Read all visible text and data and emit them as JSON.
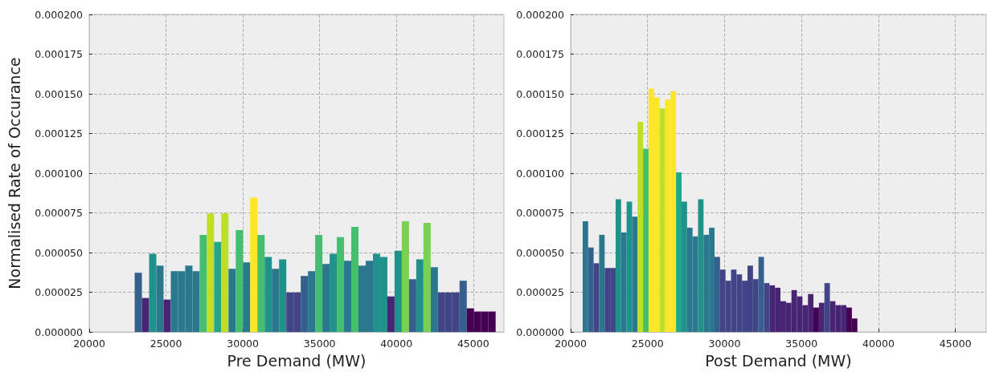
{
  "chart_data": [
    {
      "type": "histogram",
      "xlabel": "Pre Demand (MW)",
      "ylabel": "Normalised Rate of Occurance",
      "bins": [
        22960,
        23430,
        23900,
        24370,
        24840,
        25310,
        25780,
        26250,
        26720,
        27190,
        27660,
        28130,
        28600,
        29070,
        29540,
        30010,
        30480,
        30950,
        31420,
        31890,
        32360,
        32830,
        33300,
        33770,
        34240,
        34710,
        35180,
        35650,
        36120,
        36590,
        37060,
        37530,
        38000,
        38470,
        38940,
        39410,
        39880,
        40350,
        40820,
        41290,
        41760,
        42230,
        42700,
        43170,
        43640,
        44110,
        44580,
        45050,
        45520,
        45990,
        46460
      ],
      "values": [
        3.73e-05,
        2.14e-05,
        4.93e-05,
        4.18e-05,
        2.04e-05,
        3.83e-05,
        3.83e-05,
        4.18e-05,
        3.83e-05,
        6.12e-05,
        7.46e-05,
        5.67e-05,
        7.46e-05,
        3.98e-05,
        6.42e-05,
        4.38e-05,
        8.46e-05,
        6.12e-05,
        4.73e-05,
        3.98e-05,
        4.58e-05,
        2.49e-05,
        2.49e-05,
        3.53e-05,
        3.83e-05,
        6.12e-05,
        4.28e-05,
        4.93e-05,
        5.97e-05,
        4.48e-05,
        6.62e-05,
        4.18e-05,
        4.48e-05,
        4.93e-05,
        4.73e-05,
        2.24e-05,
        5.12e-05,
        6.97e-05,
        3.33e-05,
        4.58e-05,
        6.87e-05,
        4.08e-05,
        2.49e-05,
        2.49e-05,
        2.49e-05,
        3.23e-05,
        1.49e-05,
        1.29e-05,
        1.29e-05,
        1.29e-05
      ],
      "colors": [
        "#355f8d",
        "#482475",
        "#21918c",
        "#2a788e",
        "#482475",
        "#2a788e",
        "#2a788e",
        "#2a788e",
        "#2a788e",
        "#44bf70",
        "#bddf26",
        "#22a884",
        "#bddf26",
        "#2a788e",
        "#44bf70",
        "#2a788e",
        "#fde725",
        "#44bf70",
        "#21918c",
        "#2a788e",
        "#21918c",
        "#414487",
        "#414487",
        "#355f8d",
        "#2a788e",
        "#44bf70",
        "#2a788e",
        "#21918c",
        "#44bf70",
        "#2a788e",
        "#44bf70",
        "#2a788e",
        "#2a788e",
        "#21918c",
        "#21918c",
        "#482475",
        "#21918c",
        "#7ad151",
        "#355f8d",
        "#21918c",
        "#7ad151",
        "#2a788e",
        "#414487",
        "#414487",
        "#414487",
        "#355f8d",
        "#440154",
        "#440154",
        "#440154",
        "#440154"
      ],
      "xlim": [
        20000,
        47000
      ],
      "xticks": [
        20000,
        25000,
        30000,
        35000,
        40000,
        45000
      ],
      "ylim": [
        0,
        0.0002
      ],
      "yticks": [
        {
          "value": 0,
          "label": "0.000000"
        },
        {
          "value": 2.5e-05,
          "label": "0.000025"
        },
        {
          "value": 5e-05,
          "label": "0.000050"
        },
        {
          "value": 7.5e-05,
          "label": "0.000075"
        },
        {
          "value": 0.0001,
          "label": "0.000100"
        },
        {
          "value": 0.000125,
          "label": "0.000125"
        },
        {
          "value": 0.00015,
          "label": "0.000150"
        },
        {
          "value": 0.000175,
          "label": "0.000175"
        },
        {
          "value": 0.0002,
          "label": "0.000200"
        }
      ],
      "grid": true
    },
    {
      "type": "histogram",
      "xlabel": "Post Demand (MW)",
      "bins": [
        20780,
        21137,
        21494,
        21851,
        22208,
        22565,
        22922,
        23279,
        23636,
        23993,
        24350,
        24707,
        25064,
        25421,
        25778,
        26135,
        26492,
        26849,
        27206,
        27563,
        27920,
        28277,
        28634,
        28991,
        29348,
        29705,
        30062,
        30419,
        30776,
        31133,
        31490,
        31847,
        32204,
        32561,
        32918,
        33275,
        33632,
        33989,
        34346,
        34703,
        35060,
        35417,
        35774,
        36131,
        36488,
        36845,
        37202,
        37559,
        37916,
        38273,
        38630
      ],
      "values": [
        6.97e-05,
        5.32e-05,
        4.33e-05,
        6.12e-05,
        4.03e-05,
        4.03e-05,
        8.36e-05,
        6.27e-05,
        8.21e-05,
        7.26e-05,
        0.0001323,
        0.0001154,
        0.0001532,
        0.0001478,
        0.0001408,
        0.0001463,
        0.0001517,
        0.0001005,
        8.21e-05,
        6.57e-05,
        6.02e-05,
        8.36e-05,
        6.12e-05,
        6.57e-05,
        4.73e-05,
        3.93e-05,
        3.23e-05,
        3.93e-05,
        3.63e-05,
        3.23e-05,
        4.18e-05,
        3.33e-05,
        4.73e-05,
        3.08e-05,
        2.94e-05,
        2.79e-05,
        1.94e-05,
        1.84e-05,
        2.64e-05,
        2.24e-05,
        1.69e-05,
        2.39e-05,
        1.54e-05,
        1.84e-05,
        3.08e-05,
        1.94e-05,
        1.69e-05,
        1.69e-05,
        1.54e-05,
        8.5e-06
      ],
      "colors": [
        "#2a788e",
        "#355f8d",
        "#414487",
        "#2a788e",
        "#414487",
        "#414487",
        "#21918c",
        "#2a788e",
        "#21918c",
        "#2a788e",
        "#bddf26",
        "#44bf70",
        "#fde725",
        "#fde725",
        "#bddf26",
        "#fde725",
        "#fde725",
        "#22a884",
        "#21918c",
        "#2a788e",
        "#2a788e",
        "#21918c",
        "#2a788e",
        "#2a788e",
        "#355f8d",
        "#414487",
        "#414487",
        "#414487",
        "#414487",
        "#414487",
        "#414487",
        "#414487",
        "#355f8d",
        "#414487",
        "#482475",
        "#482475",
        "#482475",
        "#482475",
        "#482475",
        "#482475",
        "#482475",
        "#482475",
        "#440154",
        "#482475",
        "#414487",
        "#482475",
        "#482475",
        "#482475",
        "#440154",
        "#440154"
      ],
      "xlim": [
        20000,
        47000
      ],
      "xticks": [
        20000,
        25000,
        30000,
        35000,
        40000,
        45000
      ],
      "ylim": [
        0,
        0.0002
      ],
      "yticks": [
        {
          "value": 0,
          "label": "0.000000"
        },
        {
          "value": 2.5e-05,
          "label": "0.000025"
        },
        {
          "value": 5e-05,
          "label": "0.000050"
        },
        {
          "value": 7.5e-05,
          "label": "0.000075"
        },
        {
          "value": 0.0001,
          "label": "0.000100"
        },
        {
          "value": 0.000125,
          "label": "0.000125"
        },
        {
          "value": 0.00015,
          "label": "0.000150"
        },
        {
          "value": 0.000175,
          "label": "0.000175"
        },
        {
          "value": 0.0002,
          "label": "0.000200"
        }
      ],
      "grid": true
    }
  ]
}
